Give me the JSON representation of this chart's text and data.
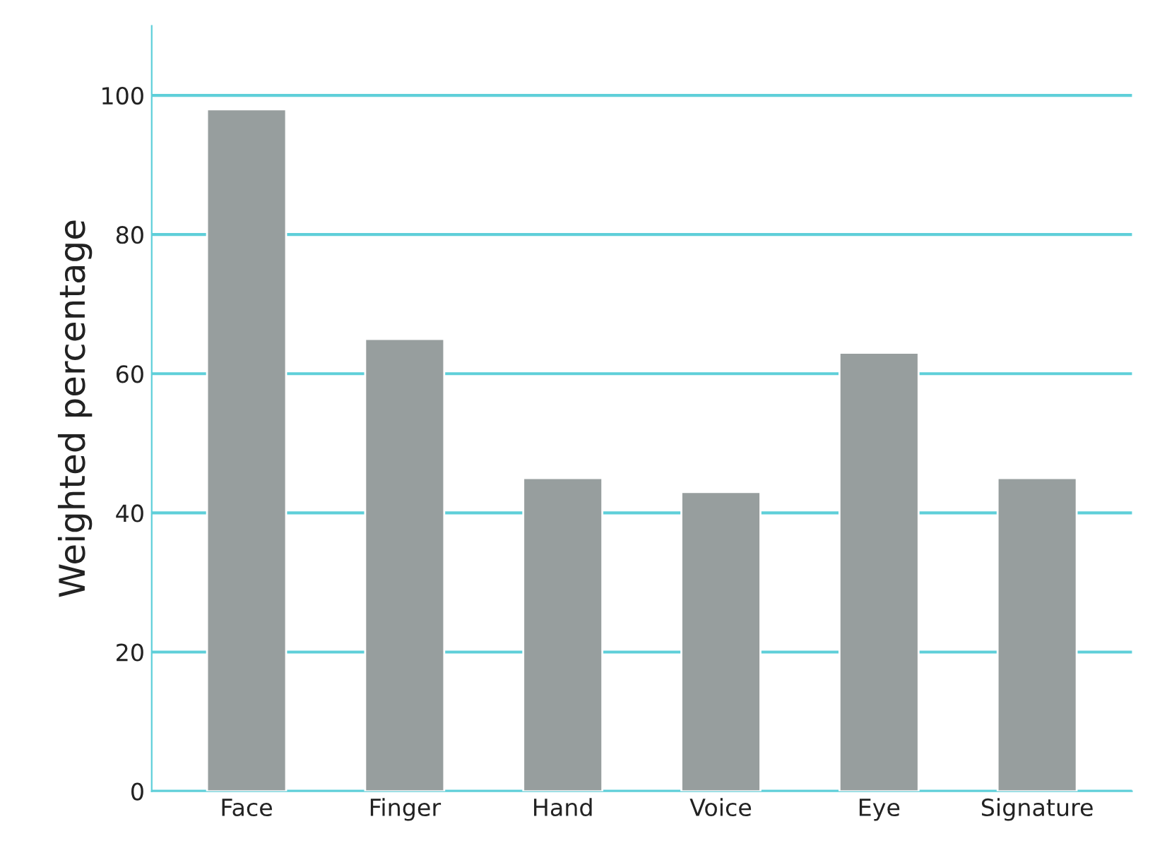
{
  "chart_data": {
    "type": "bar",
    "ylabel": "Weighted percentage",
    "categories": [
      "Face",
      "Finger",
      "Hand",
      "Voice",
      "Eye",
      "Signature"
    ],
    "values": [
      98,
      65,
      45,
      43,
      63,
      45
    ],
    "color": "#979e9e",
    "ylim": [
      0,
      110
    ],
    "yticks": [
      0,
      20,
      40,
      60,
      80,
      100
    ],
    "grid": "y"
  }
}
